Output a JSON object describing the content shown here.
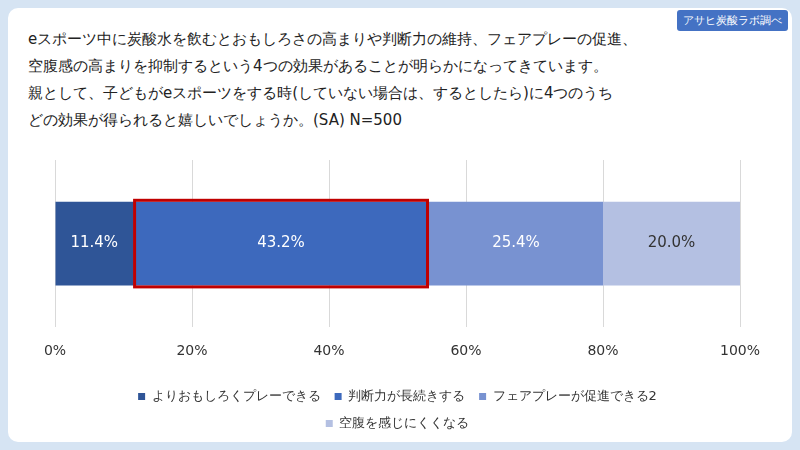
{
  "chart_data": {
    "type": "bar",
    "title": [
      "eスポーツ中に炭酸水を飲むとおもしろさの高まりや判断力の維持、フェアプレーの促進、",
      "空腹感の高まりを抑制するという4つの効果があることが明らかになってきています。",
      "親として、子どもがeスポーツをする時(していない場合は、するとしたら)に4つのうち",
      "どの効果が得られると嬉しいでしょうか。(SA) N=500"
    ],
    "source": "アサヒ炭酸ラボ調べ",
    "orientation": "horizontal",
    "stacked": true,
    "data_labels": true,
    "grid": true,
    "legend": "bottom",
    "tick_labels": "x",
    "categories": [
      null
    ],
    "series": [
      {
        "name": "よりおもしろくプレーできる",
        "color": "#2f5597",
        "values": [
          11.4
        ],
        "value_labels": [
          "11.4%"
        ]
      },
      {
        "name": "判断力が長続きする",
        "color": "#3d69bd",
        "values": [
          43.2
        ],
        "value_labels": [
          "43.2%"
        ]
      },
      {
        "name": "フェアプレーが促進できる2",
        "color": "#7892d1",
        "values": [
          25.4
        ],
        "value_labels": [
          "25.4%"
        ]
      },
      {
        "name": "空腹を感じにくくなる",
        "color": "#b4c0e2",
        "values": [
          20.0
        ],
        "value_labels": [
          "20.0%"
        ]
      }
    ],
    "xlim": [
      0,
      100
    ],
    "xticks": [
      {
        "value": 0,
        "label": "0%"
      },
      {
        "value": 20,
        "label": "20%"
      },
      {
        "value": 40,
        "label": "40%"
      },
      {
        "value": 60,
        "label": "60%"
      },
      {
        "value": 80,
        "label": "80%"
      },
      {
        "value": 100,
        "label": "100%"
      }
    ]
  }
}
